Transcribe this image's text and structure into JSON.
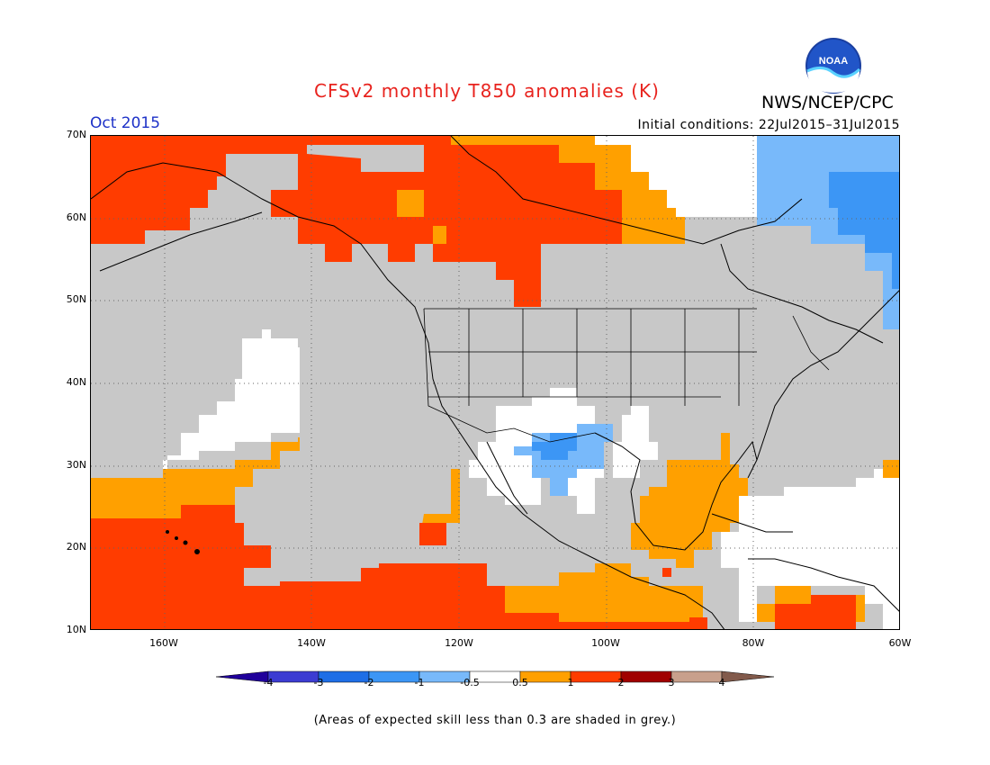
{
  "header": {
    "title": "CFSv2 monthly T850 anomalies (K)",
    "agency": "NWS/NCEP/CPC",
    "logo_text": "NOAA",
    "month": "Oct 2015",
    "initial_conditions": "Initial conditions: 22Jul2015–31Jul2015"
  },
  "map": {
    "lat_ticks": [
      "70N",
      "60N",
      "50N",
      "40N",
      "30N",
      "20N",
      "10N"
    ],
    "lon_ticks": [
      "160W",
      "140W",
      "120W",
      "100W",
      "80W",
      "60W"
    ],
    "extent": {
      "lon_min": -170,
      "lon_max": -60,
      "lat_min": 10,
      "lat_max": 70
    },
    "grey_meaning": "skill < 0.3"
  },
  "colorbar": {
    "labels": [
      "-4",
      "-3",
      "-2",
      "-1",
      "-0.5",
      "0.5",
      "1",
      "2",
      "3",
      "4"
    ],
    "colors": [
      "#20009b",
      "#3c3cd2",
      "#1e6ee6",
      "#3c96f5",
      "#78b9fa",
      "#ffffff",
      "#ffa000",
      "#ff3c00",
      "#a00000",
      "#c8a08c",
      "#825a4b"
    ]
  },
  "footer": {
    "note": "(Areas of expected skill less than 0.3 are shaded in grey.)"
  }
}
